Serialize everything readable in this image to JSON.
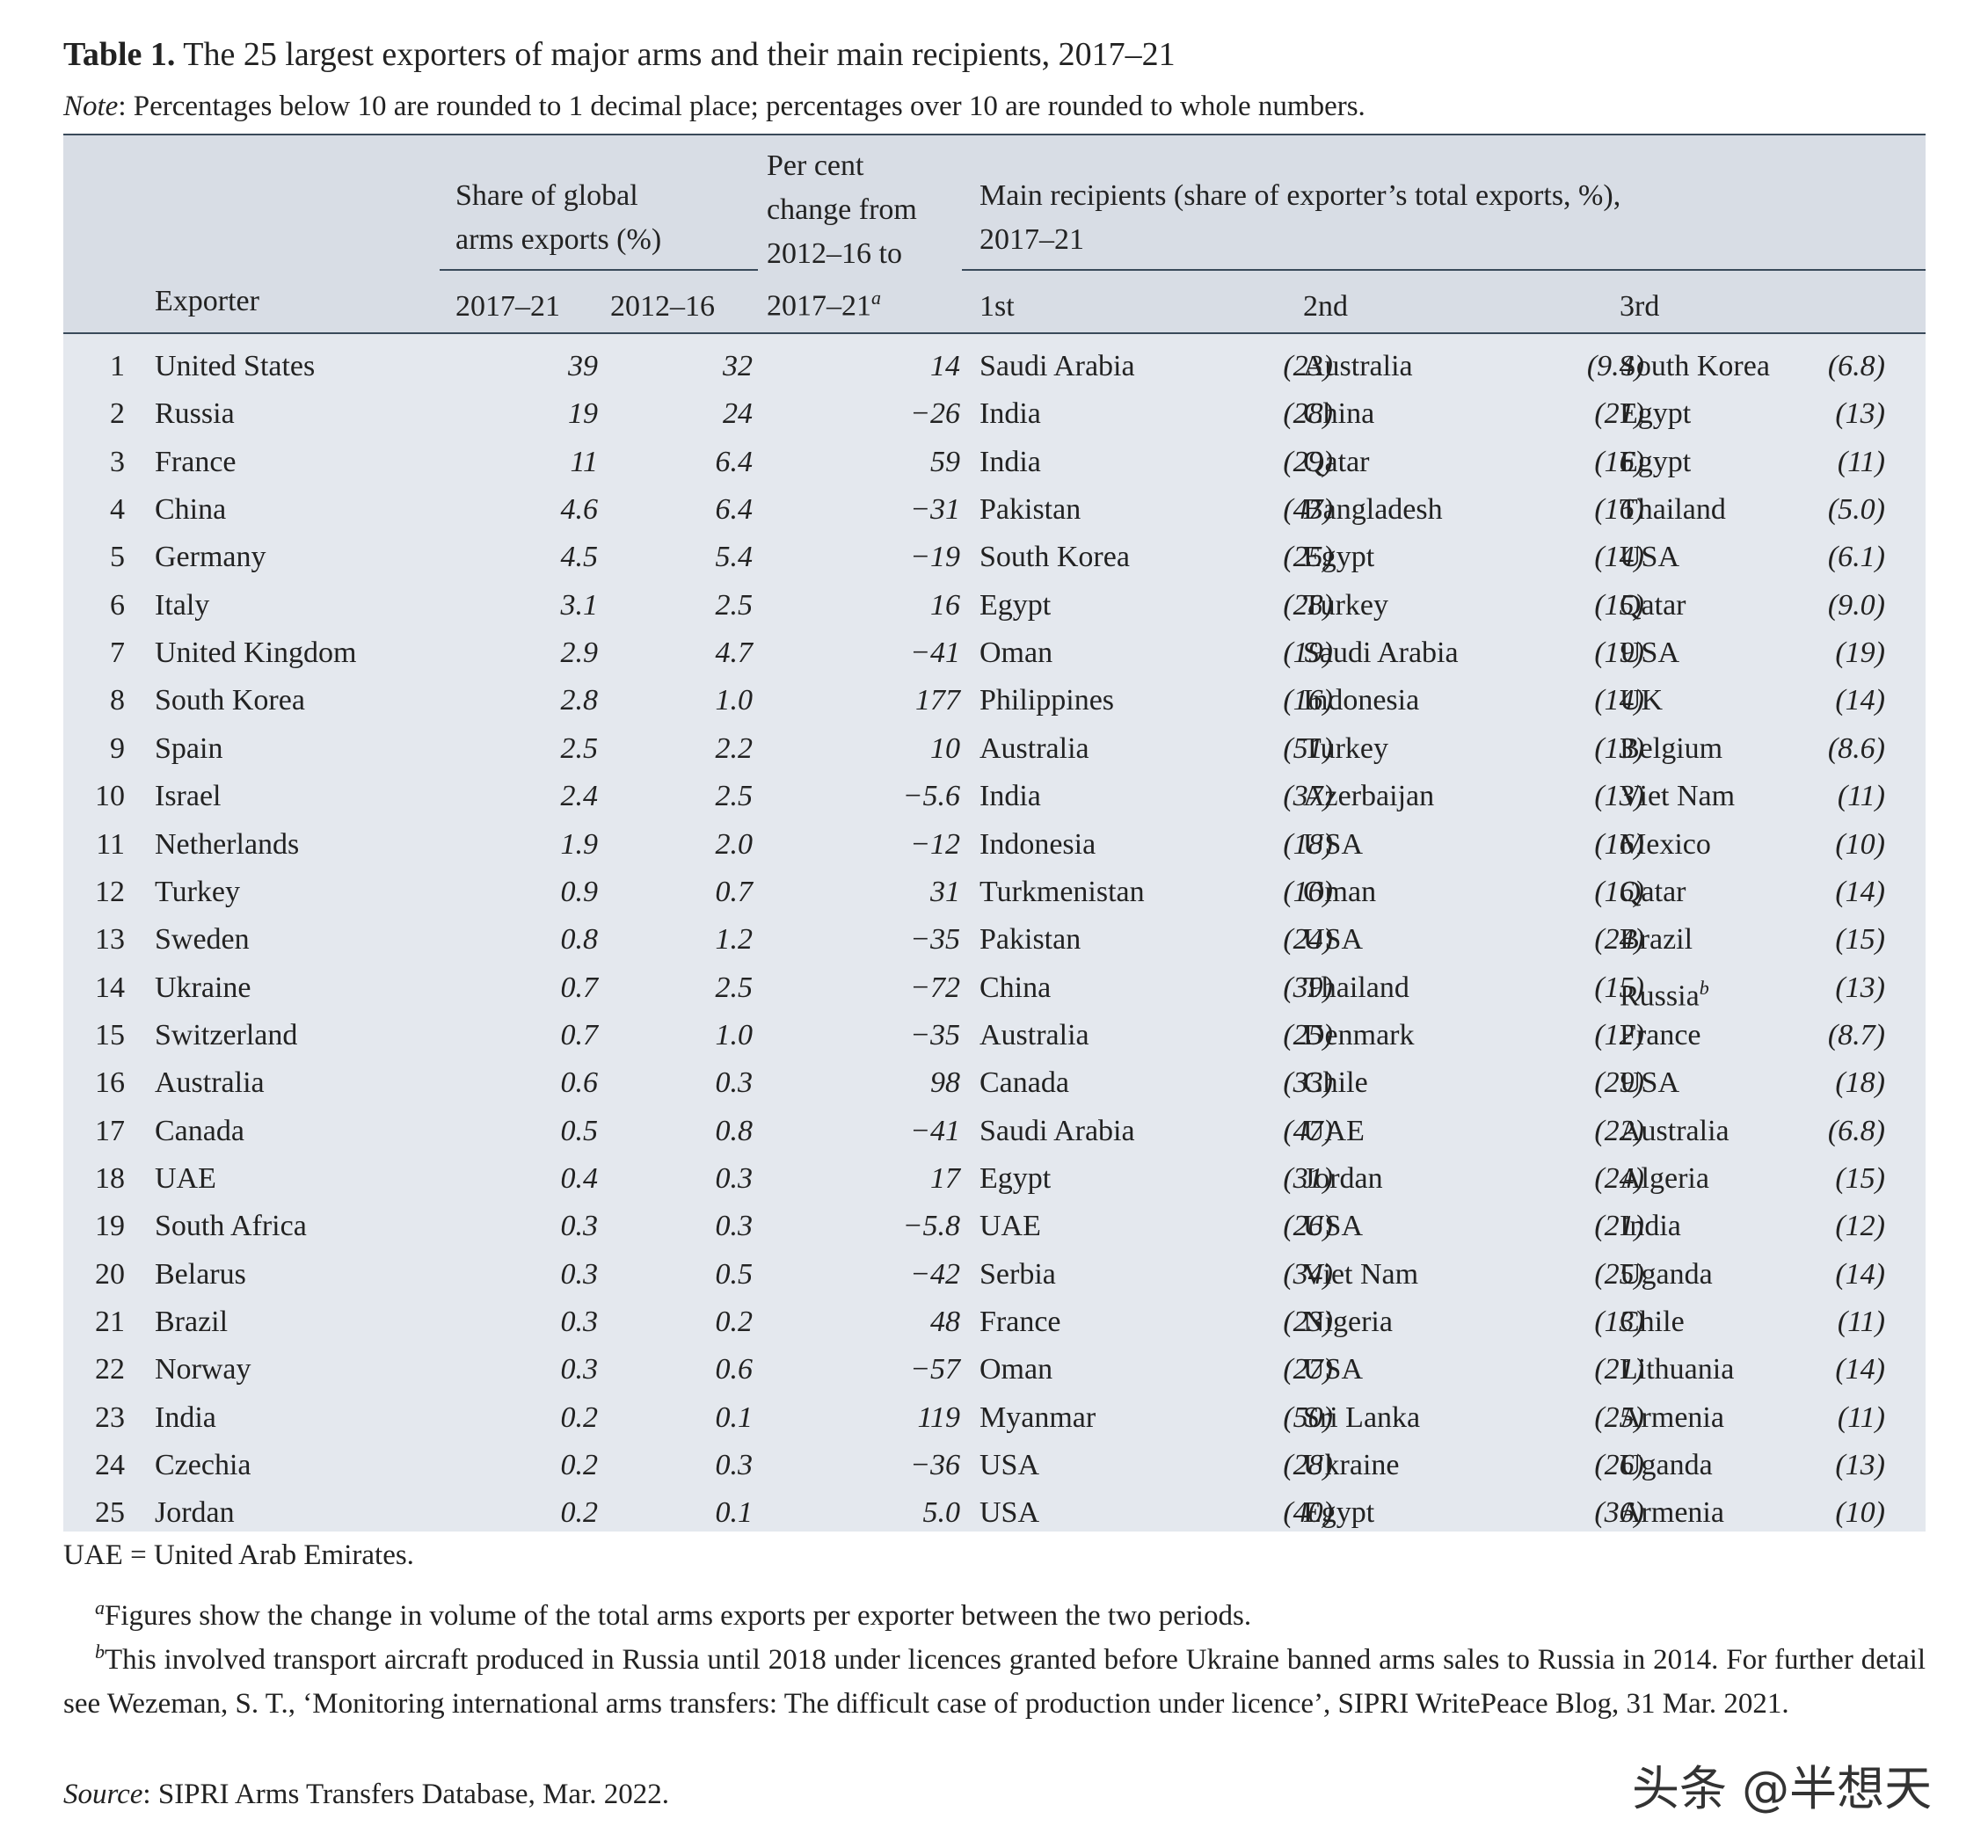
{
  "title": {
    "label": "Table 1.",
    "text": "The 25 largest exporters of major arms and their main recipients, 2017–21"
  },
  "note": {
    "label": "Note",
    "text": ": Percentages below 10 are rounded to 1 decimal place; percentages over 10 are rounded to whole numbers."
  },
  "headers": {
    "exporter": "Exporter",
    "share_group_1": "Share of global",
    "share_group_2": "arms exports (%)",
    "share_2017_21": "2017–21",
    "share_2012_16": "2012–16",
    "change_1": "Per cent",
    "change_2": "change from",
    "change_3": "2012–16 to",
    "change_4": "2017–21",
    "change_sup": "a",
    "recipients_1": "Main recipients (share of exporter’s total exports, %),",
    "recipients_2": "2017–21",
    "first": "1st",
    "second": "2nd",
    "third": "3rd"
  },
  "rows": [
    {
      "rank": "1",
      "exporter": "United States",
      "s21": "39",
      "s16": "32",
      "chg": "14",
      "r1": "Saudi Arabia",
      "p1": "(23)",
      "r2": "Australia",
      "p2": "(9.4)",
      "r3": "South Korea",
      "p3": "(6.8)"
    },
    {
      "rank": "2",
      "exporter": "Russia",
      "s21": "19",
      "s16": "24",
      "chg": "−26",
      "r1": "India",
      "p1": "(28)",
      "r2": "China",
      "p2": "(21)",
      "r3": "Egypt",
      "p3": "(13)"
    },
    {
      "rank": "3",
      "exporter": "France",
      "s21": "11",
      "s16": "6.4",
      "chg": "59",
      "r1": "India",
      "p1": "(29)",
      "r2": "Qatar",
      "p2": "(16)",
      "r3": "Egypt",
      "p3": "(11)"
    },
    {
      "rank": "4",
      "exporter": "China",
      "s21": "4.6",
      "s16": "6.4",
      "chg": "−31",
      "r1": "Pakistan",
      "p1": "(47)",
      "r2": "Bangladesh",
      "p2": "(16)",
      "r3": "Thailand",
      "p3": "(5.0)"
    },
    {
      "rank": "5",
      "exporter": "Germany",
      "s21": "4.5",
      "s16": "5.4",
      "chg": "−19",
      "r1": "South Korea",
      "p1": "(25)",
      "r2": "Egypt",
      "p2": "(14)",
      "r3": "USA",
      "p3": "(6.1)"
    },
    {
      "rank": "6",
      "exporter": "Italy",
      "s21": "3.1",
      "s16": "2.5",
      "chg": "16",
      "r1": "Egypt",
      "p1": "(28)",
      "r2": "Turkey",
      "p2": "(15)",
      "r3": "Qatar",
      "p3": "(9.0)"
    },
    {
      "rank": "7",
      "exporter": "United Kingdom",
      "s21": "2.9",
      "s16": "4.7",
      "chg": "−41",
      "r1": "Oman",
      "p1": "(19)",
      "r2": "Saudi Arabia",
      "p2": "(19)",
      "r3": "USA",
      "p3": "(19)"
    },
    {
      "rank": "8",
      "exporter": "South Korea",
      "s21": "2.8",
      "s16": "1.0",
      "chg": "177",
      "r1": "Philippines",
      "p1": "(16)",
      "r2": "Indonesia",
      "p2": "(14)",
      "r3": "UK",
      "p3": "(14)"
    },
    {
      "rank": "9",
      "exporter": "Spain",
      "s21": "2.5",
      "s16": "2.2",
      "chg": "10",
      "r1": "Australia",
      "p1": "(51)",
      "r2": "Turkey",
      "p2": "(13)",
      "r3": "Belgium",
      "p3": "(8.6)"
    },
    {
      "rank": "10",
      "exporter": "Israel",
      "s21": "2.4",
      "s16": "2.5",
      "chg": "−5.6",
      "r1": "India",
      "p1": "(37)",
      "r2": "Azerbaijan",
      "p2": "(13)",
      "r3": "Viet Nam",
      "p3": "(11)"
    },
    {
      "rank": "11",
      "exporter": "Netherlands",
      "s21": "1.9",
      "s16": "2.0",
      "chg": "−12",
      "r1": "Indonesia",
      "p1": "(18)",
      "r2": "USA",
      "p2": "(16)",
      "r3": "Mexico",
      "p3": "(10)"
    },
    {
      "rank": "12",
      "exporter": "Turkey",
      "s21": "0.9",
      "s16": "0.7",
      "chg": "31",
      "r1": "Turkmenistan",
      "p1": "(16)",
      "r2": "Oman",
      "p2": "(16)",
      "r3": "Qatar",
      "p3": "(14)"
    },
    {
      "rank": "13",
      "exporter": "Sweden",
      "s21": "0.8",
      "s16": "1.2",
      "chg": "−35",
      "r1": "Pakistan",
      "p1": "(24)",
      "r2": "USA",
      "p2": "(24)",
      "r3": "Brazil",
      "p3": "(15)"
    },
    {
      "rank": "14",
      "exporter": "Ukraine",
      "s21": "0.7",
      "s16": "2.5",
      "chg": "−72",
      "r1": "China",
      "p1": "(39)",
      "r2": "Thailand",
      "p2": "(15)",
      "r3": "Russia",
      "r3sup": "b",
      "p3": "(13)"
    },
    {
      "rank": "15",
      "exporter": "Switzerland",
      "s21": "0.7",
      "s16": "1.0",
      "chg": "−35",
      "r1": "Australia",
      "p1": "(25)",
      "r2": "Denmark",
      "p2": "(12)",
      "r3": "France",
      "p3": "(8.7)"
    },
    {
      "rank": "16",
      "exporter": "Australia",
      "s21": "0.6",
      "s16": "0.3",
      "chg": "98",
      "r1": "Canada",
      "p1": "(33)",
      "r2": "Chile",
      "p2": "(29)",
      "r3": "USA",
      "p3": "(18)"
    },
    {
      "rank": "17",
      "exporter": "Canada",
      "s21": "0.5",
      "s16": "0.8",
      "chg": "−41",
      "r1": "Saudi Arabia",
      "p1": "(47)",
      "r2": "UAE",
      "p2": "(22)",
      "r3": "Australia",
      "p3": "(6.8)"
    },
    {
      "rank": "18",
      "exporter": "UAE",
      "s21": "0.4",
      "s16": "0.3",
      "chg": "17",
      "r1": "Egypt",
      "p1": "(31)",
      "r2": "Jordan",
      "p2": "(24)",
      "r3": "Algeria",
      "p3": "(15)"
    },
    {
      "rank": "19",
      "exporter": "South Africa",
      "s21": "0.3",
      "s16": "0.3",
      "chg": "−5.8",
      "r1": "UAE",
      "p1": "(26)",
      "r2": "USA",
      "p2": "(21)",
      "r3": "India",
      "p3": "(12)"
    },
    {
      "rank": "20",
      "exporter": "Belarus",
      "s21": "0.3",
      "s16": "0.5",
      "chg": "−42",
      "r1": "Serbia",
      "p1": "(34)",
      "r2": "Viet Nam",
      "p2": "(25)",
      "r3": "Uganda",
      "p3": "(14)"
    },
    {
      "rank": "21",
      "exporter": "Brazil",
      "s21": "0.3",
      "s16": "0.2",
      "chg": "48",
      "r1": "France",
      "p1": "(23)",
      "r2": "Nigeria",
      "p2": "(13)",
      "r3": "Chile",
      "p3": "(11)"
    },
    {
      "rank": "22",
      "exporter": "Norway",
      "s21": "0.3",
      "s16": "0.6",
      "chg": "−57",
      "r1": "Oman",
      "p1": "(27)",
      "r2": "USA",
      "p2": "(21)",
      "r3": "Lithuania",
      "p3": "(14)"
    },
    {
      "rank": "23",
      "exporter": "India",
      "s21": "0.2",
      "s16": "0.1",
      "chg": "119",
      "r1": "Myanmar",
      "p1": "(50)",
      "r2": "Sri Lanka",
      "p2": "(25)",
      "r3": "Armenia",
      "p3": "(11)"
    },
    {
      "rank": "24",
      "exporter": "Czechia",
      "s21": "0.2",
      "s16": "0.3",
      "chg": "−36",
      "r1": "USA",
      "p1": "(28)",
      "r2": "Ukraine",
      "p2": "(26)",
      "r3": "Uganda",
      "p3": "(13)"
    },
    {
      "rank": "25",
      "exporter": "Jordan",
      "s21": "0.2",
      "s16": "0.1",
      "chg": "5.0",
      "r1": "USA",
      "p1": "(40)",
      "r2": "Egypt",
      "p2": "(36)",
      "r3": "Armenia",
      "p3": "(10)"
    }
  ],
  "footnotes": {
    "uae": "UAE = United Arab Emirates.",
    "a_mark": "a",
    "a_text": "Figures show the change in volume of the total arms exports per exporter between the two periods.",
    "b_mark": "b",
    "b_text": "This involved transport aircraft produced in Russia until 2018 under licences granted before Ukraine banned arms sales to Russia in 2014. For further detail see Wezeman, S. T., ‘Monitoring international arms transfers: The difficult case of production under licence’, SIPRI WritePeace Blog, 31 Mar. 2021.",
    "source_label": "Source",
    "source_text": ": SIPRI Arms Transfers Database, Mar. 2022."
  },
  "watermark": "头条 @半想天"
}
